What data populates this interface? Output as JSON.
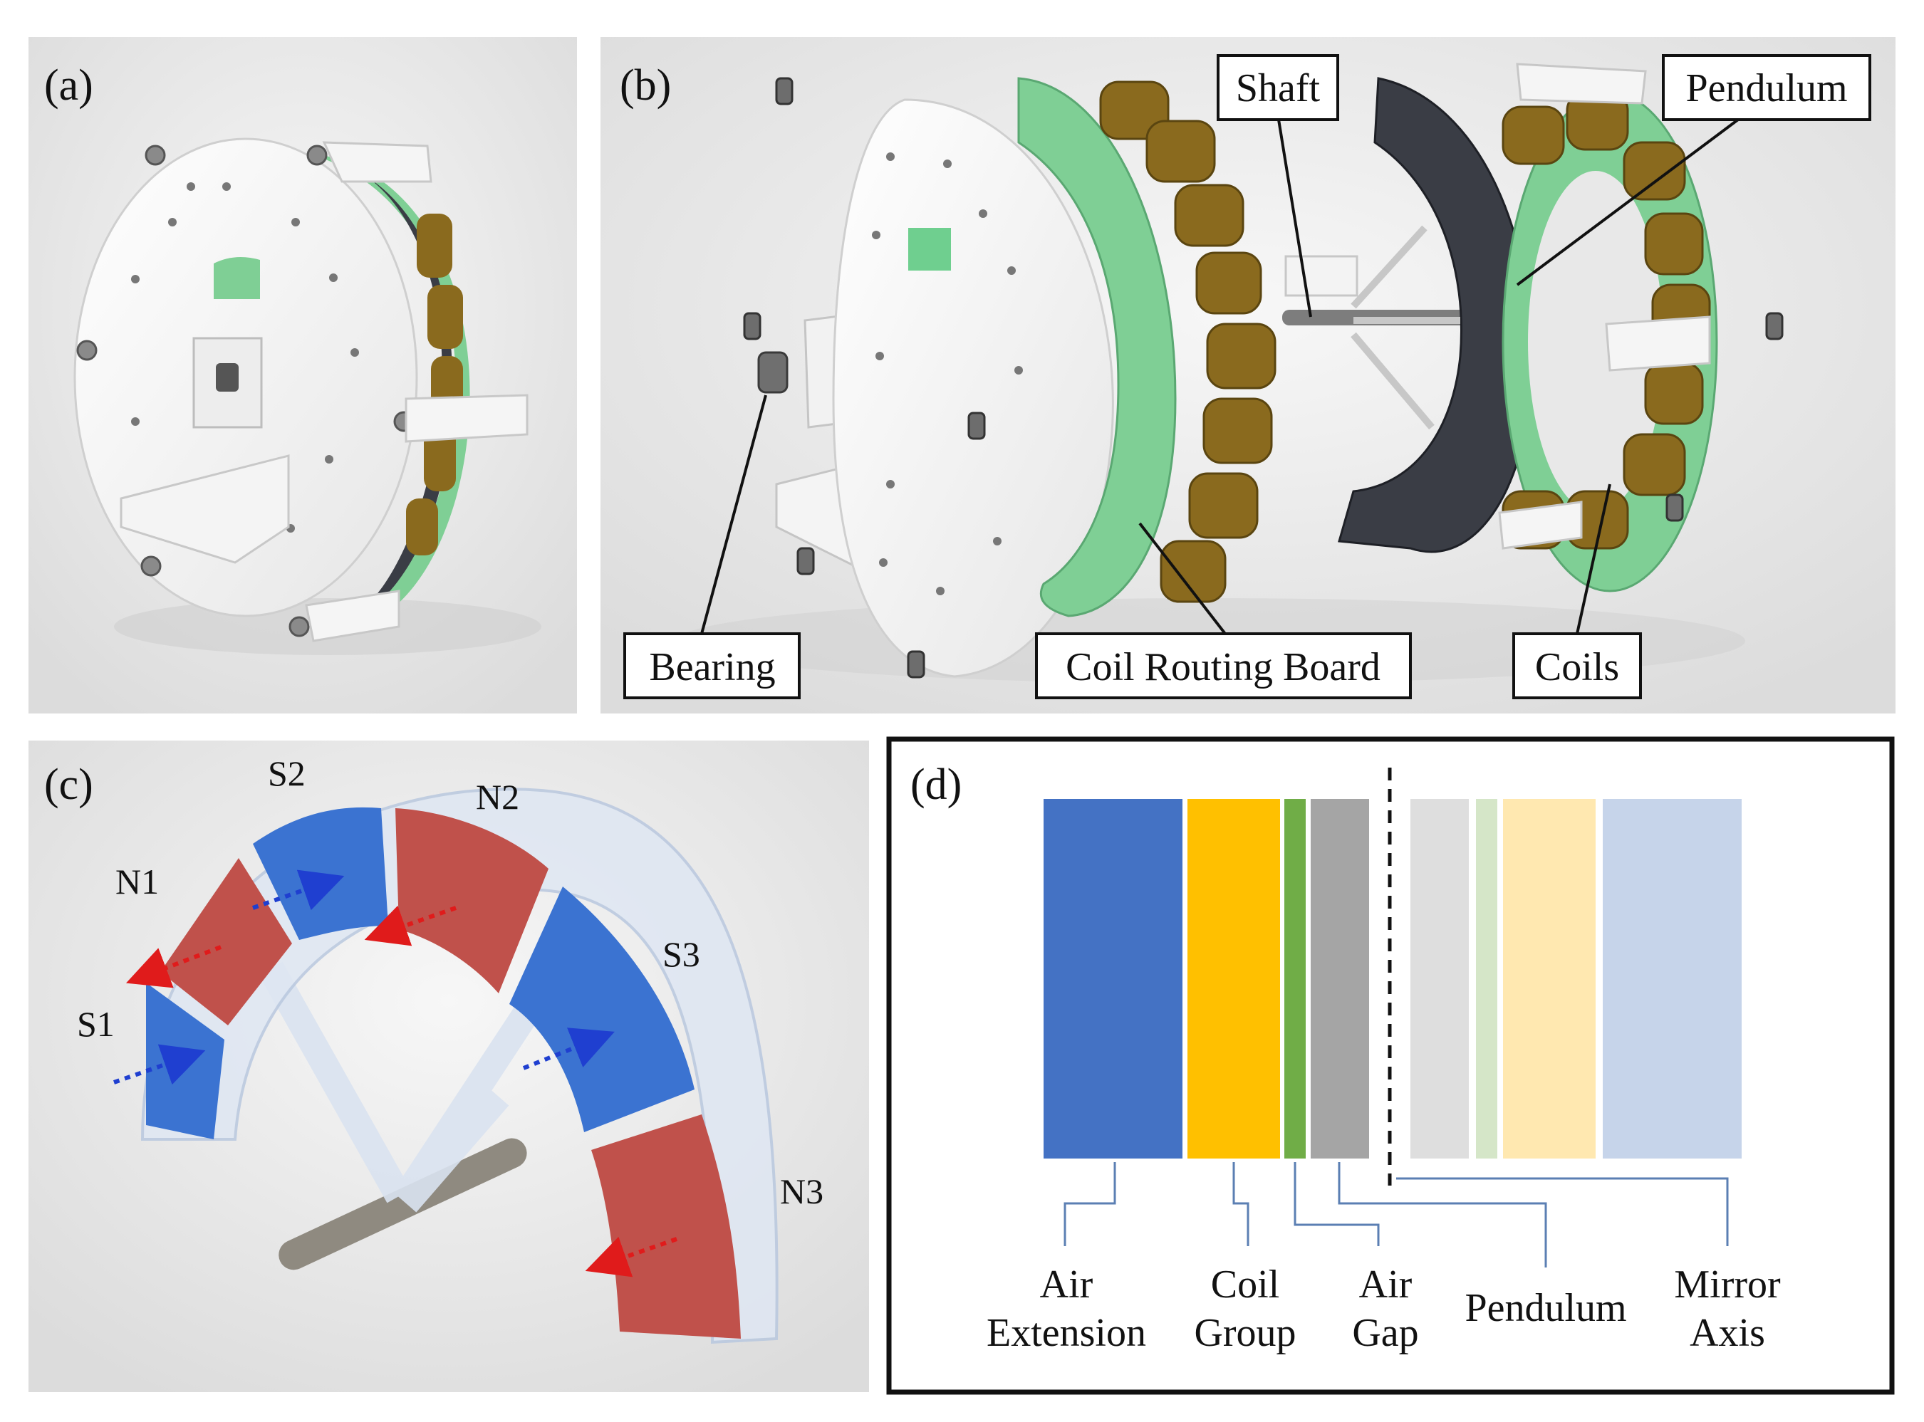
{
  "panels": {
    "a": {
      "label": "(a)"
    },
    "b": {
      "label": "(b)",
      "callouts": {
        "shaft": "Shaft",
        "pendulum": "Pendulum",
        "bearing": "Bearing",
        "coil_routing_board": "Coil Routing Board",
        "coils": "Coils"
      }
    },
    "c": {
      "label": "(c)",
      "poles": {
        "s1": "S1",
        "n1": "N1",
        "s2": "S2",
        "n2": "N2",
        "s3": "S3",
        "n3": "N3"
      }
    },
    "d": {
      "label": "(d)",
      "legend": {
        "air_extension_line1": "Air",
        "air_extension_line2": "Extension",
        "coil_group_line1": "Coil",
        "coil_group_line2": "Group",
        "air_gap_line1": "Air",
        "air_gap_line2": "Gap",
        "pendulum": "Pendulum",
        "mirror_axis_line1": "Mirror",
        "mirror_axis_line2": "Axis"
      }
    }
  },
  "colors": {
    "air_extension": "#4472c4",
    "coil_group": "#ffc000",
    "coil_board_green": "#70ad47",
    "air_gap": "#a5a5a5",
    "mirror_gray": "#dedede",
    "mirror_green": "#d5e6c8",
    "mirror_yellow": "#ffe8b0",
    "mirror_blue": "#c6d4ea",
    "magnet_blue": "#3b73d1",
    "magnet_red": "#c0514b",
    "coil_brown": "#8a6a1e",
    "board_green": "#7fcf95",
    "connector_line": "#5b7fb3"
  },
  "icons": {
    "flux_arrow_blue": "dotted-arrow-blue",
    "flux_arrow_red": "dotted-arrow-red"
  }
}
